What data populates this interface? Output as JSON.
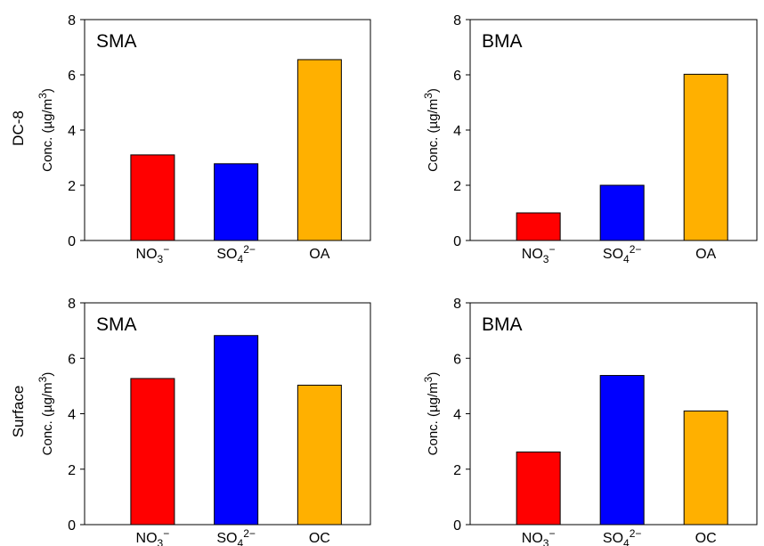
{
  "row_labels": [
    "DC-8",
    "Surface"
  ],
  "ylabel": "Conc. (µg/m³)",
  "chart_data": [
    {
      "type": "bar",
      "panel_label": "SMA",
      "row": "DC-8",
      "categories": [
        "NO₃⁻",
        "SO₄²⁻",
        "OA"
      ],
      "values": [
        3.1,
        2.78,
        6.55
      ],
      "colors": [
        "#ff0000",
        "#0000ff",
        "#ffb000"
      ],
      "ylabel": "Conc. (µg/m³)",
      "ylim": [
        0,
        8
      ],
      "yticks": [
        0,
        2,
        4,
        6,
        8
      ]
    },
    {
      "type": "bar",
      "panel_label": "BMA",
      "row": "DC-8",
      "categories": [
        "NO₃⁻",
        "SO₄²⁻",
        "OA"
      ],
      "values": [
        1.0,
        2.0,
        6.02
      ],
      "colors": [
        "#ff0000",
        "#0000ff",
        "#ffb000"
      ],
      "ylabel": "Conc. (µg/m³)",
      "ylim": [
        0,
        8
      ],
      "yticks": [
        0,
        2,
        4,
        6,
        8
      ]
    },
    {
      "type": "bar",
      "panel_label": "SMA",
      "row": "Surface",
      "categories": [
        "NO₃⁻",
        "SO₄²⁻",
        "OC"
      ],
      "values": [
        5.27,
        6.82,
        5.03
      ],
      "colors": [
        "#ff0000",
        "#0000ff",
        "#ffb000"
      ],
      "ylabel": "Conc. (µg/m³)",
      "ylim": [
        0,
        8
      ],
      "yticks": [
        0,
        2,
        4,
        6,
        8
      ]
    },
    {
      "type": "bar",
      "panel_label": "BMA",
      "row": "Surface",
      "categories": [
        "NO₃⁻",
        "SO₄²⁻",
        "OC"
      ],
      "values": [
        2.62,
        5.38,
        4.1
      ],
      "colors": [
        "#ff0000",
        "#0000ff",
        "#ffb000"
      ],
      "ylabel": "Conc. (µg/m³)",
      "ylim": [
        0,
        8
      ],
      "yticks": [
        0,
        2,
        4,
        6,
        8
      ]
    }
  ]
}
